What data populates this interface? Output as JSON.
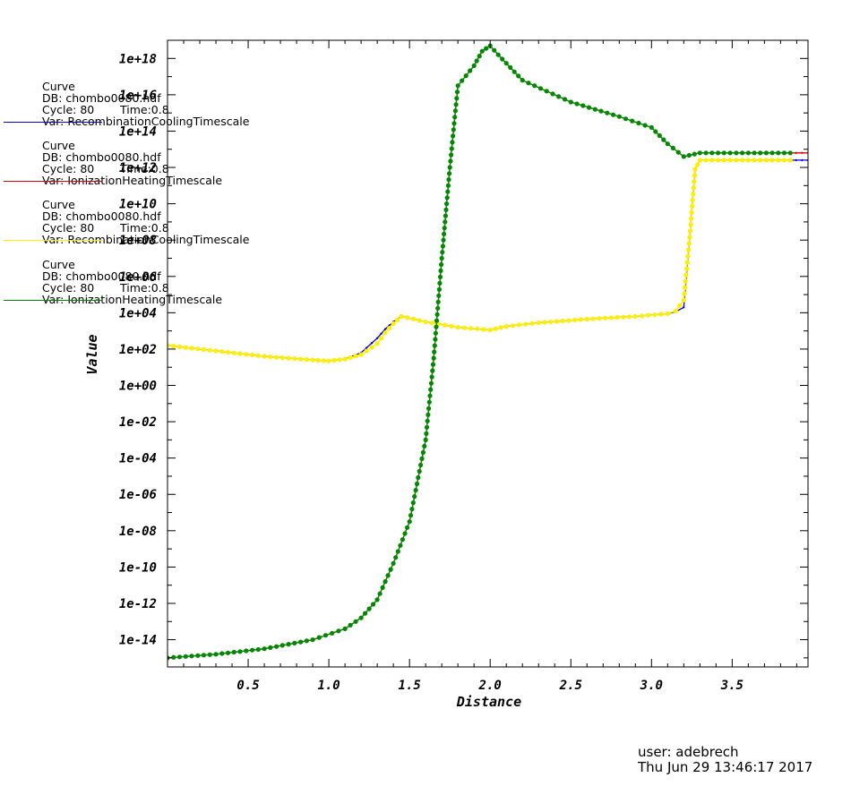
{
  "chart_data": {
    "type": "line",
    "xlabel": "Distance",
    "ylabel": "Value",
    "xlim": [
      0.0,
      3.97
    ],
    "ylim_log10": [
      -15.5,
      19
    ],
    "yscale": "log",
    "x_ticks": [
      "0.5",
      "1.0",
      "1.5",
      "2.0",
      "2.5",
      "3.0",
      "3.5"
    ],
    "x_tick_values": [
      0.5,
      1.0,
      1.5,
      2.0,
      2.5,
      3.0,
      3.5
    ],
    "y_ticks": [
      "1e+18",
      "1e+16",
      "1e+14",
      "1e+12",
      "1e+10",
      "1e+08",
      "1e+06",
      "1e+04",
      "1e+02",
      "1e+00",
      "1e-02",
      "1e-04",
      "1e-06",
      "1e-08",
      "1e-10",
      "1e-12",
      "1e-14"
    ],
    "y_tick_exponents": [
      18,
      16,
      14,
      12,
      10,
      8,
      6,
      4,
      2,
      0,
      -2,
      -4,
      -6,
      -8,
      -10,
      -12,
      -14
    ],
    "grid": false,
    "legend_position": "left",
    "series": [
      {
        "color": "#0000cc",
        "marker": "small-dot",
        "x": [
          0.0,
          0.3,
          0.6,
          0.9,
          1.0,
          1.1,
          1.2,
          1.3,
          1.35,
          1.4,
          1.45,
          1.6,
          1.8,
          2.0,
          2.1,
          2.3,
          2.6,
          2.9,
          3.1,
          3.15,
          3.2,
          3.24,
          3.27,
          3.3,
          3.6,
          3.97
        ],
        "log10_y": [
          2.2,
          1.9,
          1.6,
          1.4,
          1.35,
          1.45,
          1.8,
          2.6,
          3.1,
          3.5,
          3.8,
          3.5,
          3.2,
          3.05,
          3.25,
          3.45,
          3.65,
          3.8,
          3.95,
          4.05,
          4.3,
          8.5,
          11.9,
          12.4,
          12.4,
          12.4
        ]
      },
      {
        "color": "#dd0000",
        "marker": "small-dot",
        "x": [
          0.0,
          0.3,
          0.6,
          0.9,
          1.1,
          1.2,
          1.3,
          1.4,
          1.5,
          1.6,
          1.65,
          1.7,
          1.75,
          1.8,
          1.9,
          1.95,
          2.0,
          2.05,
          2.2,
          2.5,
          2.8,
          3.0,
          3.1,
          3.2,
          3.3,
          3.6,
          3.97
        ],
        "log10_y": [
          -15,
          -14.8,
          -14.5,
          -14,
          -13.4,
          -12.8,
          -11.8,
          -9.8,
          -7.5,
          -3,
          1.5,
          7,
          12,
          16.5,
          17.6,
          18.4,
          18.7,
          18.2,
          16.8,
          15.6,
          14.8,
          14.2,
          13.3,
          12.6,
          12.8,
          12.8,
          12.8
        ]
      },
      {
        "color": "#ffee00",
        "marker": "filled-circle",
        "x": [
          0.0,
          0.3,
          0.6,
          0.9,
          1.0,
          1.1,
          1.2,
          1.3,
          1.35,
          1.4,
          1.45,
          1.6,
          1.8,
          2.0,
          2.1,
          2.3,
          2.6,
          2.9,
          3.1,
          3.15,
          3.2,
          3.24,
          3.27,
          3.3,
          3.6,
          3.86
        ],
        "log10_y": [
          2.2,
          1.9,
          1.6,
          1.4,
          1.35,
          1.45,
          1.7,
          2.3,
          2.9,
          3.4,
          3.8,
          3.5,
          3.2,
          3.05,
          3.25,
          3.45,
          3.65,
          3.8,
          3.95,
          4.1,
          4.7,
          8.5,
          11.9,
          12.4,
          12.4,
          12.4
        ]
      },
      {
        "color": "#008800",
        "marker": "filled-circle",
        "x": [
          0.0,
          0.3,
          0.6,
          0.9,
          1.1,
          1.2,
          1.3,
          1.4,
          1.5,
          1.6,
          1.65,
          1.7,
          1.75,
          1.8,
          1.9,
          1.95,
          2.0,
          2.05,
          2.2,
          2.5,
          2.8,
          3.0,
          3.1,
          3.2,
          3.3,
          3.6,
          3.86
        ],
        "log10_y": [
          -15,
          -14.8,
          -14.5,
          -14,
          -13.4,
          -12.8,
          -11.8,
          -9.8,
          -7.5,
          -3,
          1.5,
          7,
          12,
          16.5,
          17.6,
          18.4,
          18.7,
          18.2,
          16.8,
          15.6,
          14.8,
          14.2,
          13.3,
          12.6,
          12.8,
          12.8,
          12.8
        ]
      }
    ]
  },
  "legend": [
    {
      "title": "Curve",
      "db": "DB: chombo0080.hdf",
      "cycle": "Cycle: 80",
      "time": "Time:0.8",
      "var": "Var: RecombinationCoolingTimescale",
      "color": "#0000cc"
    },
    {
      "title": "Curve",
      "db": "DB: chombo0080.hdf",
      "cycle": "Cycle: 80",
      "time": "Time:0.8",
      "var": "Var: IonizationHeatingTimescale",
      "color": "#dd0000"
    },
    {
      "title": "Curve",
      "db": "DB: chombo0080.hdf",
      "cycle": "Cycle: 80",
      "time": "Time:0.8",
      "var": "Var: RecombinationCoolingTimescale",
      "color": "#ffee00"
    },
    {
      "title": "Curve",
      "db": "DB: chombo0080.hdf",
      "cycle": "Cycle: 80",
      "time": "Time:0.8",
      "var": "Var: IonizationHeatingTimescale",
      "color": "#008800"
    }
  ],
  "footer": {
    "user": "user: adebrech",
    "date": "Thu Jun 29 13:46:17 2017"
  }
}
